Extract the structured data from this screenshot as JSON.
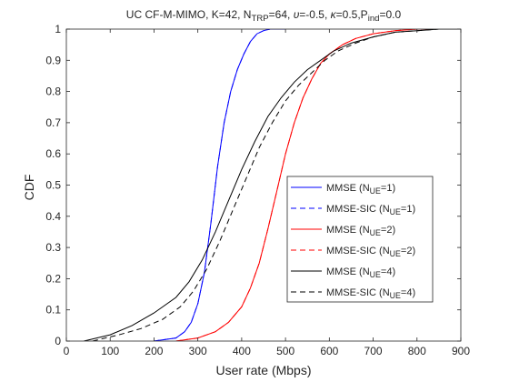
{
  "chart_data": {
    "type": "line",
    "title_parts": [
      {
        "t": "UC CF-M-MIMO, K=42, N"
      },
      {
        "t": "TRP",
        "sub": true
      },
      {
        "t": "=64, "
      },
      {
        "t": "υ",
        "italic": true
      },
      {
        "t": "=-0.5, "
      },
      {
        "t": "κ",
        "italic": true
      },
      {
        "t": "=0.5,P"
      },
      {
        "t": "ind",
        "sub": true
      },
      {
        "t": "=0.0"
      }
    ],
    "xlabel": "User rate (Mbps)",
    "ylabel": "CDF",
    "xlim": [
      0,
      900
    ],
    "ylim": [
      0,
      1
    ],
    "xticks": [
      0,
      100,
      200,
      300,
      400,
      500,
      600,
      700,
      800,
      900
    ],
    "yticks": [
      0,
      0.1,
      0.2,
      0.3,
      0.4,
      0.5,
      0.6,
      0.7,
      0.8,
      0.9,
      1
    ],
    "ytick_labels": [
      "0",
      "0.1",
      "0.2",
      "0.3",
      "0.4",
      "0.5",
      "0.6",
      "0.7",
      "0.8",
      "0.9",
      "1"
    ],
    "grid": false,
    "legend_position": "center-right",
    "series": [
      {
        "label": [
          {
            "t": "MMSE (N"
          },
          {
            "t": "UE",
            "sub": true
          },
          {
            "t": "=1)"
          }
        ],
        "color": "#0000ff",
        "dash": "solid",
        "x": [
          200,
          250,
          270,
          285,
          300,
          315,
          330,
          345,
          360,
          375,
          390,
          405,
          420,
          435,
          450,
          465,
          480,
          500
        ],
        "y": [
          0.0,
          0.01,
          0.03,
          0.06,
          0.12,
          0.22,
          0.38,
          0.56,
          0.7,
          0.8,
          0.87,
          0.92,
          0.96,
          0.985,
          0.995,
          1.0,
          1.0,
          1.0
        ]
      },
      {
        "label": [
          {
            "t": "MMSE-SIC (N"
          },
          {
            "t": "UE",
            "sub": true
          },
          {
            "t": "=1)"
          }
        ],
        "color": "#0000ff",
        "dash": "dashed",
        "x": [
          200,
          250,
          270,
          285,
          300,
          315,
          330,
          345,
          360,
          375,
          390,
          405,
          420,
          435,
          450,
          465,
          480,
          500
        ],
        "y": [
          0.0,
          0.01,
          0.03,
          0.06,
          0.12,
          0.22,
          0.38,
          0.56,
          0.7,
          0.8,
          0.87,
          0.92,
          0.96,
          0.985,
          0.995,
          1.0,
          1.0,
          1.0
        ]
      },
      {
        "label": [
          {
            "t": "MMSE (N"
          },
          {
            "t": "UE",
            "sub": true
          },
          {
            "t": "=2)"
          }
        ],
        "color": "#ff0000",
        "dash": "solid",
        "x": [
          250,
          300,
          340,
          370,
          400,
          420,
          440,
          460,
          480,
          500,
          520,
          540,
          560,
          580,
          600,
          630,
          660,
          700,
          750,
          800,
          850,
          900
        ],
        "y": [
          0.0,
          0.01,
          0.03,
          0.06,
          0.11,
          0.17,
          0.25,
          0.36,
          0.48,
          0.6,
          0.7,
          0.78,
          0.84,
          0.89,
          0.92,
          0.95,
          0.97,
          0.985,
          0.995,
          1.0,
          1.0,
          1.0
        ]
      },
      {
        "label": [
          {
            "t": "MMSE-SIC (N"
          },
          {
            "t": "UE",
            "sub": true
          },
          {
            "t": "=2)"
          }
        ],
        "color": "#ff0000",
        "dash": "dashed",
        "x": [
          250,
          300,
          340,
          370,
          400,
          420,
          440,
          460,
          480,
          500,
          520,
          540,
          560,
          580,
          600,
          630,
          660,
          700,
          750,
          800,
          850,
          900
        ],
        "y": [
          0.0,
          0.01,
          0.03,
          0.06,
          0.11,
          0.17,
          0.25,
          0.36,
          0.48,
          0.6,
          0.7,
          0.78,
          0.84,
          0.89,
          0.92,
          0.95,
          0.97,
          0.985,
          0.995,
          1.0,
          1.0,
          1.0
        ]
      },
      {
        "label": [
          {
            "t": "MMSE (N"
          },
          {
            "t": "UE",
            "sub": true
          },
          {
            "t": "=4)"
          }
        ],
        "color": "#000000",
        "dash": "solid",
        "x": [
          40,
          100,
          150,
          200,
          250,
          280,
          310,
          340,
          370,
          400,
          430,
          460,
          490,
          520,
          550,
          580,
          610,
          650,
          700,
          750,
          800,
          850,
          900
        ],
        "y": [
          0.0,
          0.02,
          0.05,
          0.09,
          0.14,
          0.19,
          0.26,
          0.35,
          0.45,
          0.55,
          0.64,
          0.72,
          0.78,
          0.83,
          0.87,
          0.9,
          0.93,
          0.955,
          0.975,
          0.99,
          0.995,
          1.0,
          1.0
        ]
      },
      {
        "label": [
          {
            "t": "MMSE-SIC (N"
          },
          {
            "t": "UE",
            "sub": true
          },
          {
            "t": "=4)"
          }
        ],
        "color": "#000000",
        "dash": "dashed",
        "x": [
          60,
          120,
          170,
          220,
          260,
          290,
          320,
          350,
          380,
          410,
          440,
          470,
          500,
          530,
          560,
          590,
          620,
          660,
          700,
          750,
          800,
          850,
          900
        ],
        "y": [
          0.0,
          0.02,
          0.04,
          0.07,
          0.11,
          0.16,
          0.23,
          0.32,
          0.42,
          0.52,
          0.62,
          0.7,
          0.77,
          0.82,
          0.86,
          0.9,
          0.93,
          0.955,
          0.975,
          0.99,
          0.995,
          1.0,
          1.0
        ]
      }
    ]
  }
}
